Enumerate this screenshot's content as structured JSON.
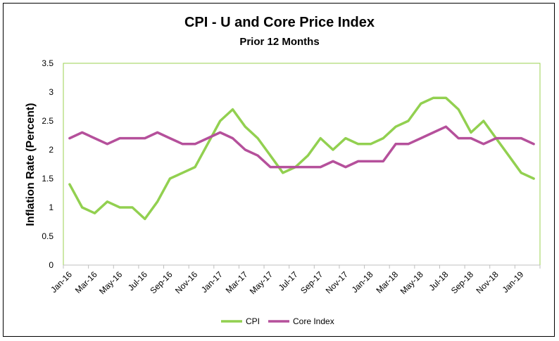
{
  "chart_data": {
    "type": "line",
    "title": "CPI - U and Core Price Index",
    "subtitle": "Prior 12 Months",
    "ylabel": "Inflation Rate (Percent)",
    "xlabel": "",
    "ylim": [
      0,
      3.5
    ],
    "yticks": [
      "0",
      "0.5",
      "1",
      "1.5",
      "2",
      "2.5",
      "3",
      "3.5"
    ],
    "grid": false,
    "legend_position": "bottom",
    "x": [
      "Jan-16",
      "Feb-16",
      "Mar-16",
      "Apr-16",
      "May-16",
      "Jun-16",
      "Jul-16",
      "Aug-16",
      "Sep-16",
      "Oct-16",
      "Nov-16",
      "Dec-16",
      "Jan-17",
      "Feb-17",
      "Mar-17",
      "Apr-17",
      "May-17",
      "Jun-17",
      "Jul-17",
      "Aug-17",
      "Sep-17",
      "Oct-17",
      "Nov-17",
      "Dec-17",
      "Jan-18",
      "Feb-18",
      "Mar-18",
      "Apr-18",
      "May-18",
      "Jun-18",
      "Jul-18",
      "Aug-18",
      "Sep-18",
      "Oct-18",
      "Nov-18",
      "Dec-18",
      "Jan-19",
      "Feb-19"
    ],
    "xtick_labels": [
      "Jan-16",
      "Mar-16",
      "May-16",
      "Jul-16",
      "Sep-16",
      "Nov-16",
      "Jan-17",
      "Mar-17",
      "May-17",
      "Jul-17",
      "Sep-17",
      "Nov-17",
      "Jan-18",
      "Mar-18",
      "May-18",
      "Jul-18",
      "Sep-18",
      "Nov-18",
      "Jan-19"
    ],
    "series": [
      {
        "name": "CPI",
        "color": "#92d050",
        "values": [
          1.4,
          1.0,
          0.9,
          1.1,
          1.0,
          1.0,
          0.8,
          1.1,
          1.5,
          1.6,
          1.7,
          2.1,
          2.5,
          2.7,
          2.4,
          2.2,
          1.9,
          1.6,
          1.7,
          1.9,
          2.2,
          2.0,
          2.2,
          2.1,
          2.1,
          2.2,
          2.4,
          2.5,
          2.8,
          2.9,
          2.9,
          2.7,
          2.3,
          2.5,
          2.2,
          1.9,
          1.6,
          1.5
        ]
      },
      {
        "name": "Core Index",
        "color": "#b5509b",
        "values": [
          2.2,
          2.3,
          2.2,
          2.1,
          2.2,
          2.2,
          2.2,
          2.3,
          2.2,
          2.1,
          2.1,
          2.2,
          2.3,
          2.2,
          2.0,
          1.9,
          1.7,
          1.7,
          1.7,
          1.7,
          1.7,
          1.8,
          1.7,
          1.8,
          1.8,
          1.8,
          2.1,
          2.1,
          2.2,
          2.3,
          2.4,
          2.2,
          2.2,
          2.1,
          2.2,
          2.2,
          2.2,
          2.1
        ]
      }
    ],
    "plot_border_color": "#9bd150"
  }
}
